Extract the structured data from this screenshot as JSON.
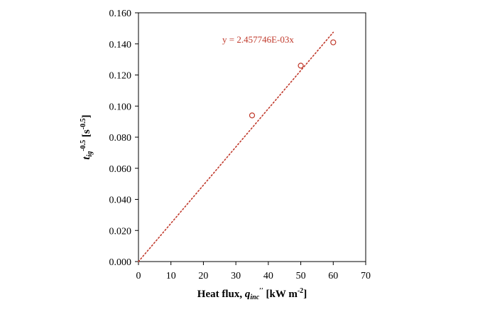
{
  "chart_data": {
    "type": "scatter",
    "xlim": [
      0,
      70
    ],
    "ylim": [
      0,
      0.16
    ],
    "xticks": [
      "0",
      "10",
      "20",
      "30",
      "40",
      "50",
      "60",
      "70"
    ],
    "yticks": [
      "0.000",
      "0.020",
      "0.040",
      "0.060",
      "0.080",
      "0.100",
      "0.120",
      "0.140",
      "0.160"
    ],
    "grid": false,
    "xlabel": {
      "main": "Heat flux, ",
      "var": "q",
      "var_sub": "inc",
      "var_sup": "′′",
      "unit": " [kW m",
      "unit_sup": "-2",
      "unit_end": "]"
    },
    "ylabel": {
      "var": "t",
      "var_sub": "ig",
      "var_sup": "-0.5",
      "unit": " [s",
      "unit_sup": "-0.5",
      "unit_end": "]"
    },
    "points": {
      "x": [
        35,
        50,
        60
      ],
      "y": [
        0.094,
        0.126,
        0.141
      ]
    },
    "trendline": {
      "slope": 0.002457746,
      "x_start": 0,
      "x_end": 60,
      "equation": "y = 2.457746E-03x"
    },
    "colors": {
      "marker": "#c0392b",
      "trend": "#c0392b",
      "axis": "#000000"
    }
  }
}
